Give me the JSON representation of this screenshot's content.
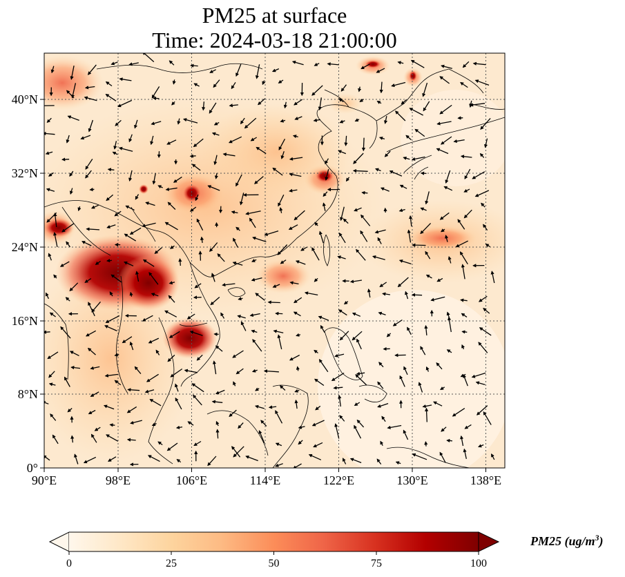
{
  "title": {
    "line1": "PM25 at surface",
    "line2": "Time: 2024-03-18 21:00:00"
  },
  "map": {
    "region": "East and Southeast Asia",
    "projection": "PlateCarree",
    "lon_range": [
      90,
      140
    ],
    "lat_range": [
      0,
      45
    ],
    "gridlines": "dotted",
    "overlay": "wind vectors (black arrows)",
    "x_ticks": [
      "90°E",
      "98°E",
      "106°E",
      "114°E",
      "122°E",
      "130°E",
      "138°E"
    ],
    "y_ticks": [
      "0°",
      "8°N",
      "16°N",
      "24°N",
      "32°N",
      "40°N"
    ]
  },
  "colorbar": {
    "label_main": "PM25 (ug/m",
    "label_sup": "3",
    "label_close": ")",
    "ticks": [
      "0",
      "25",
      "50",
      "75",
      "100"
    ],
    "min": 0,
    "max": 100,
    "extend": "both",
    "colormap": "OrRd",
    "colors": [
      "#fff7ec",
      "#fee8c8",
      "#fdd49e",
      "#fdbb84",
      "#fc8d59",
      "#ef6548",
      "#d7301f",
      "#b30000",
      "#7f0000"
    ]
  },
  "colors": {
    "land_coast": "#000000",
    "grid": "#555555",
    "hotspot": "#7f0000"
  }
}
